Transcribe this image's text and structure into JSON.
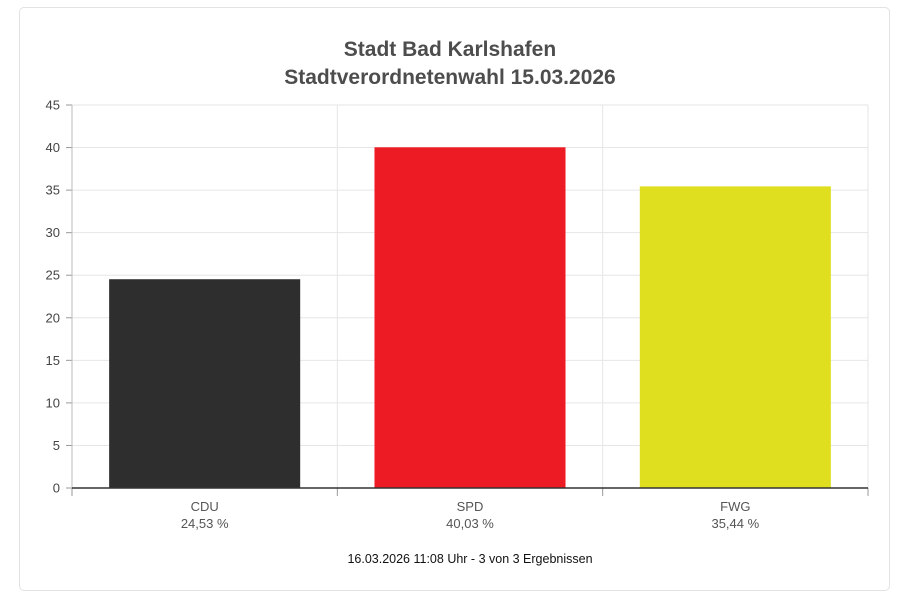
{
  "chart_data": {
    "type": "bar",
    "title": "Stadt Bad Karlshafen",
    "subtitle": "Stadtverordnetenwahl 15.03.2026",
    "categories": [
      "CDU",
      "SPD",
      "FWG"
    ],
    "values": [
      24.53,
      40.03,
      35.44
    ],
    "value_labels": [
      "24,53 %",
      "40,03 %",
      "35,44 %"
    ],
    "colors": [
      "#2f2e2f",
      "#ed1c24",
      "#dfdf1f"
    ],
    "ylim": [
      0,
      45
    ],
    "yticks": [
      0,
      5,
      10,
      15,
      20,
      25,
      30,
      35,
      40,
      45
    ],
    "grid": true,
    "xlabel": "",
    "ylabel": ""
  },
  "footer": "16.03.2026 11:08 Uhr - 3 von 3 Ergebnissen"
}
